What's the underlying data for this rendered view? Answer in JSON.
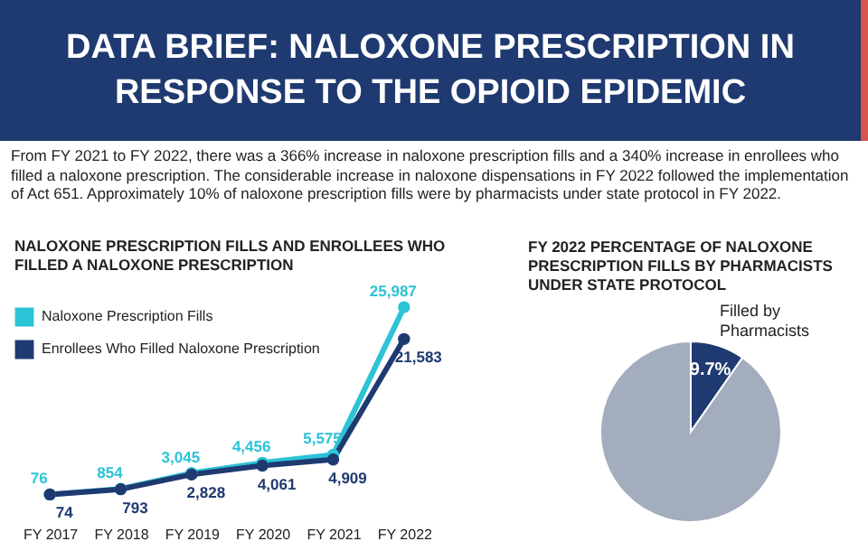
{
  "chart_data": [
    {
      "type": "other",
      "title": "DATA BRIEF: NALOXONE PRESCRIPTION IN RESPONSE TO THE OPIOID EPIDEMIC",
      "annotations": [
        "From FY 2021 to FY 2022, there was a 366% increase in naloxone prescription fills and a 340% increase in enrollees who filled a naloxone prescription. The considerable increase in naloxone dispensations in FY 2022 followed the implementation of Act 651. Approximately 10% of naloxone prescription fills were by pharmacists under state protocol in FY 2022."
      ]
    },
    {
      "type": "line",
      "title": "NALOXONE PRESCRIPTION FILLS AND ENROLLEES WHO FILLED A NALOXONE PRESCRIPTION",
      "categories": [
        "FY 2017",
        "FY 2018",
        "FY 2019",
        "FY 2020",
        "FY 2021",
        "FY 2022"
      ],
      "series": [
        {
          "name": "Naloxone Prescription Fills",
          "color": "#2cc3d6",
          "values": [
            76,
            854,
            3045,
            4456,
            5575,
            25987
          ],
          "value_labels": [
            "76",
            "854",
            "3,045",
            "4,456",
            "5,575",
            "25,987"
          ]
        },
        {
          "name": "Enrollees Who Filled Naloxone Prescription",
          "color": "#1f3a70",
          "values": [
            74,
            793,
            2828,
            4061,
            4909,
            21583
          ],
          "value_labels": [
            "74",
            "793",
            "2,828",
            "4,061",
            "4,909",
            "21,583"
          ]
        }
      ],
      "legend": "top left",
      "marker": "circle"
    },
    {
      "type": "pie",
      "title": "FY 2022 PERCENTAGE OF NALOXONE PRESCRIPTION FILLS BY PHARMACISTS UNDER STATE PROTOCOL",
      "categories": [
        "Filled by Pharmacists",
        null
      ],
      "values": [
        9.7,
        90.3
      ],
      "colors": [
        "#1f3a70",
        "#a3adbd"
      ],
      "value_labels": [
        "9.7%",
        null
      ]
    }
  ]
}
